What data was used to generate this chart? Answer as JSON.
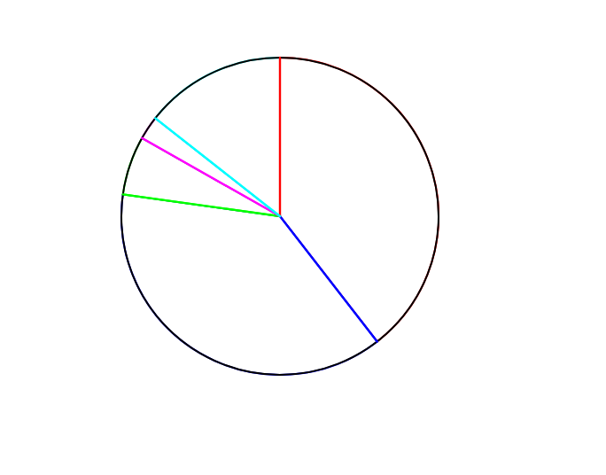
{
  "chart_data": {
    "type": "pie",
    "categories": [
      null,
      null,
      null,
      null,
      null
    ],
    "values": [
      39.5,
      37.7,
      6.0,
      2.4,
      14.4
    ],
    "colors": [
      "#ff0000",
      "#0000ff",
      "#00ff00",
      "#ff00ff",
      "#00ffff"
    ]
  }
}
